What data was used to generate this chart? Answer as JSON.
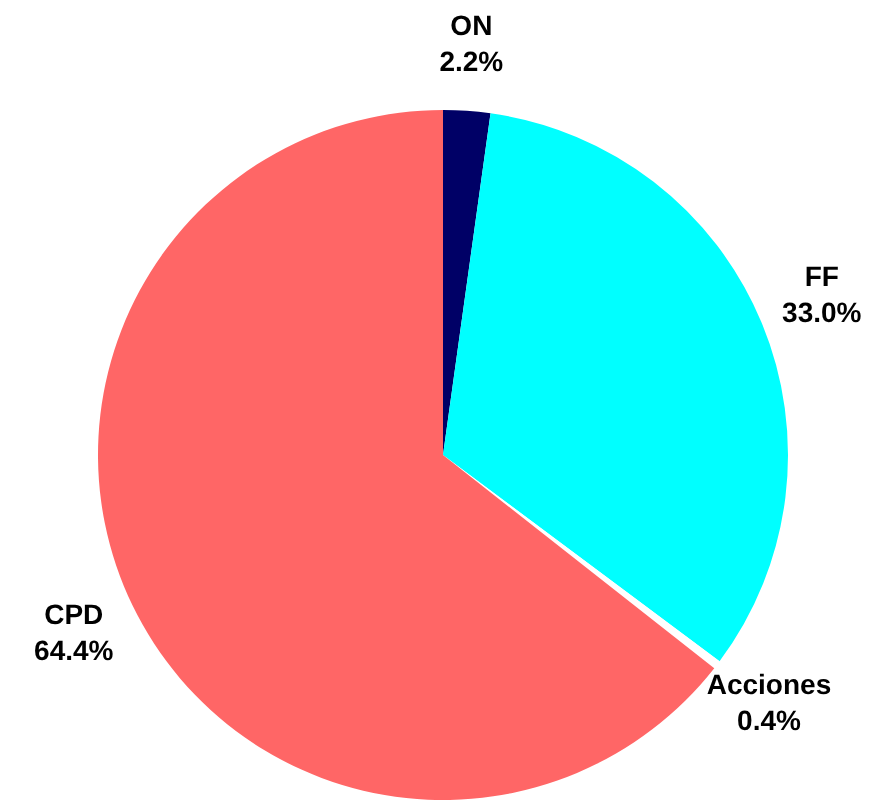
{
  "chart_data": {
    "type": "pie",
    "categories": [
      "ON",
      "FF",
      "Acciones",
      "CPD"
    ],
    "values": [
      2.2,
      33.0,
      0.4,
      64.4
    ],
    "colors": [
      "#000066",
      "#00ffff",
      "#ffffff",
      "#ff6666"
    ],
    "value_labels": [
      "2.2%",
      "33.0%",
      "0.4%",
      "64.4%"
    ],
    "legend": false
  }
}
